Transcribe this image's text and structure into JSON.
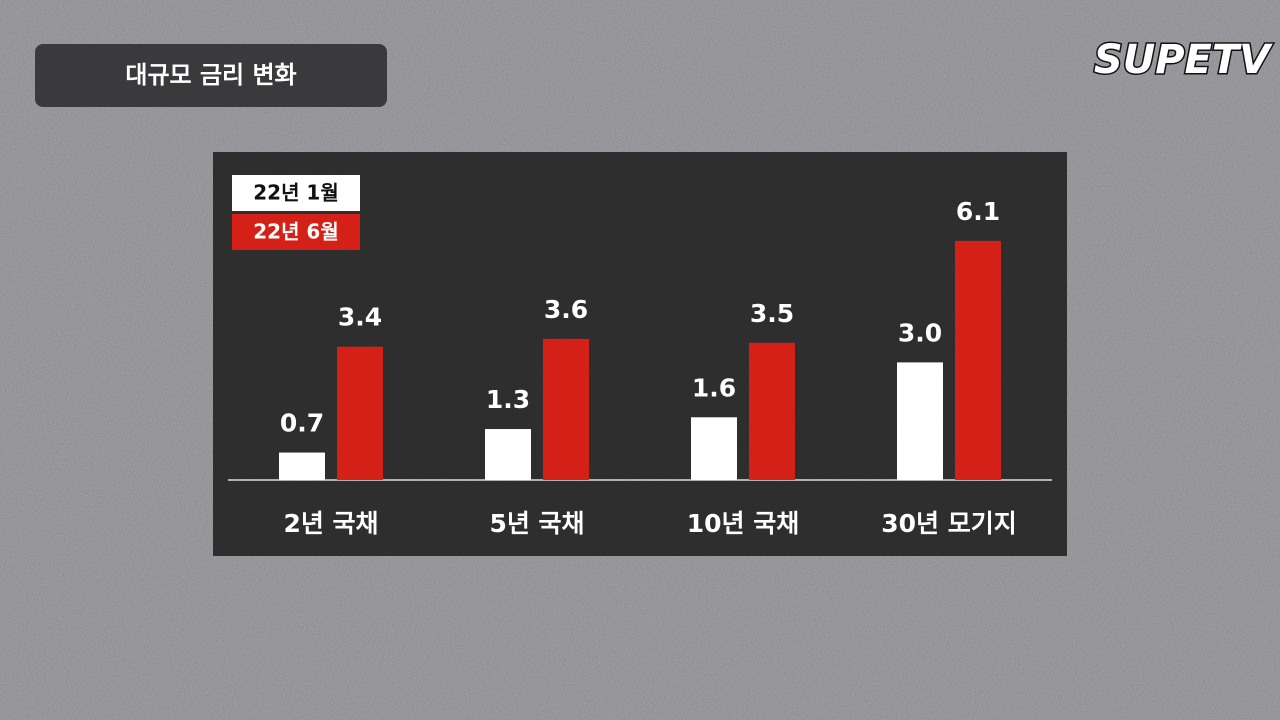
{
  "chart_data": {
    "type": "bar",
    "title": "대규모 금리 변화",
    "categories": [
      "2년 국채",
      "5년 국채",
      "10년 국채",
      "30년 모기지"
    ],
    "series": [
      {
        "name": "22년 1월",
        "color": "#ffffff",
        "values": [
          0.7,
          1.3,
          1.6,
          3.0
        ],
        "value_labels": [
          "0.7",
          "1.3",
          "1.6",
          "3.0"
        ]
      },
      {
        "name": "22년 6월",
        "color": "#d42016",
        "values": [
          3.4,
          3.6,
          3.5,
          6.1
        ],
        "value_labels": [
          "3.4",
          "3.6",
          "3.5",
          "6.1"
        ]
      }
    ]
  },
  "logo": "SUPETV"
}
